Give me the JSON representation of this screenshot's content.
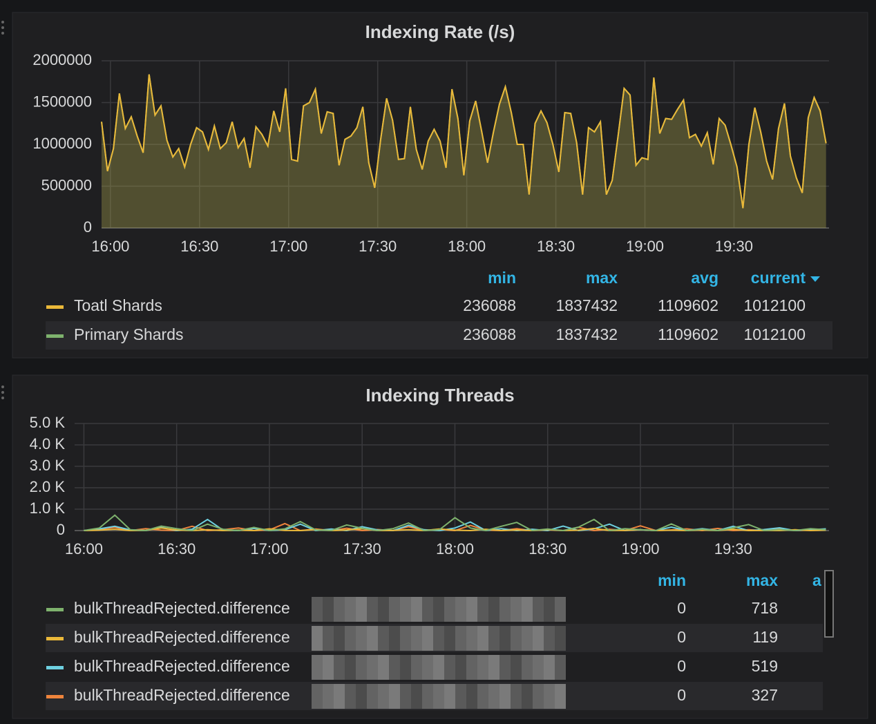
{
  "chart_data": [
    {
      "type": "line",
      "title": "Indexing Rate (/s)",
      "x": [
        "15:57",
        "15:59",
        "16:01",
        "16:03",
        "16:05",
        "16:07",
        "16:09",
        "16:11",
        "16:13",
        "16:15",
        "16:17",
        "16:19",
        "16:21",
        "16:23",
        "16:25",
        "16:27",
        "16:29",
        "16:31",
        "16:33",
        "16:35",
        "16:37",
        "16:39",
        "16:41",
        "16:43",
        "16:45",
        "16:47",
        "16:49",
        "16:51",
        "16:53",
        "16:55",
        "16:57",
        "16:59",
        "17:01",
        "17:03",
        "17:05",
        "17:07",
        "17:09",
        "17:11",
        "17:13",
        "17:15",
        "17:17",
        "17:19",
        "17:21",
        "17:23",
        "17:25",
        "17:27",
        "17:29",
        "17:31",
        "17:33",
        "17:35",
        "17:37",
        "17:39",
        "17:41",
        "17:43",
        "17:45",
        "17:47",
        "17:49",
        "17:51",
        "17:53",
        "17:55",
        "17:57",
        "17:59",
        "18:01",
        "18:03",
        "18:05",
        "18:07",
        "18:09",
        "18:11",
        "18:13",
        "18:15",
        "18:17",
        "18:19",
        "18:21",
        "18:23",
        "18:25",
        "18:27",
        "18:29",
        "18:31",
        "18:33",
        "18:35",
        "18:37",
        "18:39",
        "18:41",
        "18:43",
        "18:45",
        "18:47",
        "18:49",
        "18:51",
        "18:53",
        "18:55",
        "18:57",
        "18:59",
        "19:01",
        "19:03",
        "19:05",
        "19:07",
        "19:09",
        "19:11",
        "19:13",
        "19:15",
        "19:17",
        "19:19",
        "19:21",
        "19:23",
        "19:25",
        "19:27",
        "19:29",
        "19:31",
        "19:33",
        "19:35",
        "19:37",
        "19:39",
        "19:41",
        "19:43",
        "19:45",
        "19:47",
        "19:49",
        "19:51",
        "19:53",
        "19:55",
        "19:57",
        "19:59",
        "20:01"
      ],
      "series": [
        {
          "name": "Toatl Shards",
          "color": "#eab839",
          "values": [
            1270000,
            680000,
            950000,
            1610000,
            1190000,
            1330000,
            1100000,
            900000,
            1837432,
            1350000,
            1460000,
            1050000,
            850000,
            950000,
            730000,
            1000000,
            1200000,
            1150000,
            940000,
            1220000,
            950000,
            1020000,
            1270000,
            960000,
            1070000,
            720000,
            1210000,
            1120000,
            980000,
            1400000,
            1150000,
            1670000,
            820000,
            800000,
            1460000,
            1500000,
            1660000,
            1130000,
            1390000,
            1370000,
            750000,
            1060000,
            1100000,
            1200000,
            1450000,
            780000,
            480000,
            1060000,
            1550000,
            1290000,
            820000,
            830000,
            1450000,
            940000,
            700000,
            1040000,
            1180000,
            1040000,
            720000,
            1660000,
            1310000,
            630000,
            1280000,
            1520000,
            1160000,
            780000,
            1150000,
            1480000,
            1690000,
            1380000,
            1000000,
            1000000,
            400000,
            1250000,
            1400000,
            1260000,
            1000000,
            670000,
            1380000,
            1370000,
            1020000,
            400000,
            1200000,
            1150000,
            1270000,
            400000,
            570000,
            1110000,
            1670000,
            1590000,
            750000,
            840000,
            820000,
            1800000,
            1130000,
            1310000,
            1300000,
            1420000,
            1530000,
            1080000,
            1120000,
            980000,
            1140000,
            760000,
            1310000,
            1230000,
            990000,
            730000,
            236088,
            1000000,
            1440000,
            1150000,
            800000,
            580000,
            1190000,
            1490000,
            860000,
            600000,
            420000,
            1320000,
            1560000,
            1400000,
            1012100
          ]
        },
        {
          "name": "Primary Shards",
          "color": "#7eb26d",
          "values": [
            1270000,
            680000,
            950000,
            1610000,
            1190000,
            1330000,
            1100000,
            900000,
            1837432,
            1350000,
            1460000,
            1050000,
            850000,
            950000,
            730000,
            1000000,
            1200000,
            1150000,
            940000,
            1220000,
            950000,
            1020000,
            1270000,
            960000,
            1070000,
            720000,
            1210000,
            1120000,
            980000,
            1400000,
            1150000,
            1670000,
            820000,
            800000,
            1460000,
            1500000,
            1660000,
            1130000,
            1390000,
            1370000,
            750000,
            1060000,
            1100000,
            1200000,
            1450000,
            780000,
            480000,
            1060000,
            1550000,
            1290000,
            820000,
            830000,
            1450000,
            940000,
            700000,
            1040000,
            1180000,
            1040000,
            720000,
            1660000,
            1310000,
            630000,
            1280000,
            1520000,
            1160000,
            780000,
            1150000,
            1480000,
            1690000,
            1380000,
            1000000,
            1000000,
            400000,
            1250000,
            1400000,
            1260000,
            1000000,
            670000,
            1380000,
            1370000,
            1020000,
            400000,
            1200000,
            1150000,
            1270000,
            400000,
            570000,
            1110000,
            1670000,
            1590000,
            750000,
            840000,
            820000,
            1800000,
            1130000,
            1310000,
            1300000,
            1420000,
            1530000,
            1080000,
            1120000,
            980000,
            1140000,
            760000,
            1310000,
            1230000,
            990000,
            730000,
            236088,
            1000000,
            1440000,
            1150000,
            800000,
            580000,
            1190000,
            1490000,
            860000,
            600000,
            420000,
            1320000,
            1560000,
            1400000,
            1012100
          ]
        }
      ],
      "xlim": [
        "15:57",
        "20:02"
      ],
      "xticks": [
        "16:00",
        "16:30",
        "17:00",
        "17:30",
        "18:00",
        "18:30",
        "19:00",
        "19:30"
      ],
      "ylim": [
        0,
        2000000
      ],
      "yticks": [
        0,
        500000,
        1000000,
        1500000,
        2000000
      ],
      "grid": true,
      "fill": true,
      "legend_stats": {
        "columns": [
          "min",
          "max",
          "avg",
          "current"
        ],
        "values": [
          [
            236088,
            1837432,
            1109602,
            1012100
          ],
          [
            236088,
            1837432,
            1109602,
            1012100
          ]
        ]
      }
    },
    {
      "type": "line",
      "title": "Indexing Threads",
      "x": [
        "16:00",
        "16:05",
        "16:10",
        "16:15",
        "16:20",
        "16:25",
        "16:30",
        "16:35",
        "16:40",
        "16:45",
        "16:50",
        "16:55",
        "17:00",
        "17:05",
        "17:10",
        "17:15",
        "17:20",
        "17:25",
        "17:30",
        "17:35",
        "17:40",
        "17:45",
        "17:50",
        "17:55",
        "18:00",
        "18:05",
        "18:10",
        "18:15",
        "18:20",
        "18:25",
        "18:30",
        "18:35",
        "18:40",
        "18:45",
        "18:50",
        "18:55",
        "19:00",
        "19:05",
        "19:10",
        "19:15",
        "19:20",
        "19:25",
        "19:30",
        "19:35",
        "19:40",
        "19:45",
        "19:50",
        "19:55",
        "20:00"
      ],
      "series": [
        {
          "name": "bulkThreadRejected.difference",
          "color": "#7eb26d",
          "values": [
            0,
            120,
            718,
            40,
            0,
            210,
            90,
            0,
            300,
            60,
            0,
            150,
            0,
            80,
            420,
            30,
            0,
            260,
            110,
            0,
            90,
            350,
            0,
            40,
            600,
            120,
            0,
            200,
            380,
            0,
            70,
            0,
            160,
            520,
            0,
            90,
            40,
            0,
            310,
            0,
            60,
            0,
            130,
            280,
            0,
            50,
            0,
            90,
            40
          ]
        },
        {
          "name": "bulkThreadRejected.difference",
          "color": "#eab839",
          "values": [
            0,
            20,
            60,
            0,
            10,
            119,
            30,
            0,
            40,
            0,
            20,
            0,
            80,
            10,
            0,
            50,
            0,
            30,
            90,
            0,
            10,
            40,
            0,
            70,
            20,
            0,
            60,
            0,
            30,
            0,
            50,
            0,
            20,
            100,
            0,
            10,
            40,
            0,
            20,
            0,
            30,
            0,
            60,
            0,
            10,
            0,
            40,
            0,
            20
          ]
        },
        {
          "name": "bulkThreadRejected.difference",
          "color": "#6ed0e0",
          "values": [
            0,
            80,
            200,
            30,
            0,
            150,
            0,
            60,
            519,
            20,
            0,
            100,
            0,
            40,
            300,
            0,
            70,
            0,
            180,
            30,
            0,
            250,
            40,
            0,
            120,
            400,
            0,
            90,
            0,
            60,
            0,
            210,
            0,
            80,
            300,
            0,
            40,
            0,
            160,
            0,
            90,
            0,
            200,
            0,
            50,
            130,
            0,
            40,
            80
          ]
        },
        {
          "name": "bulkThreadRejected.difference",
          "color": "#ef843c",
          "values": [
            0,
            60,
            150,
            0,
            90,
            20,
            0,
            200,
            0,
            40,
            120,
            0,
            30,
            327,
            0,
            70,
            0,
            110,
            0,
            50,
            0,
            180,
            0,
            60,
            0,
            240,
            30,
            0,
            90,
            0,
            40,
            0,
            150,
            0,
            60,
            0,
            220,
            0,
            30,
            80,
            0,
            100,
            0,
            40,
            0,
            70,
            0,
            20,
            60
          ]
        }
      ],
      "xlim": [
        "15:57",
        "20:01"
      ],
      "xticks": [
        "16:00",
        "16:30",
        "17:00",
        "17:30",
        "18:00",
        "18:30",
        "19:00",
        "19:30"
      ],
      "ylim": [
        0,
        5000
      ],
      "yticks": [
        0,
        {
          "value": 1000,
          "label": "1.0 K"
        },
        {
          "value": 2000,
          "label": "2.0 K"
        },
        {
          "value": 3000,
          "label": "3.0 K"
        },
        {
          "value": 4000,
          "label": "4.0 K"
        },
        {
          "value": 5000,
          "label": "5.0 K"
        }
      ],
      "grid": true,
      "fill": false,
      "legend_stats": {
        "columns": [
          "min",
          "max",
          "a"
        ],
        "values": [
          [
            0,
            718
          ],
          [
            0,
            119
          ],
          [
            0,
            519
          ],
          [
            0,
            327
          ]
        ]
      }
    }
  ]
}
